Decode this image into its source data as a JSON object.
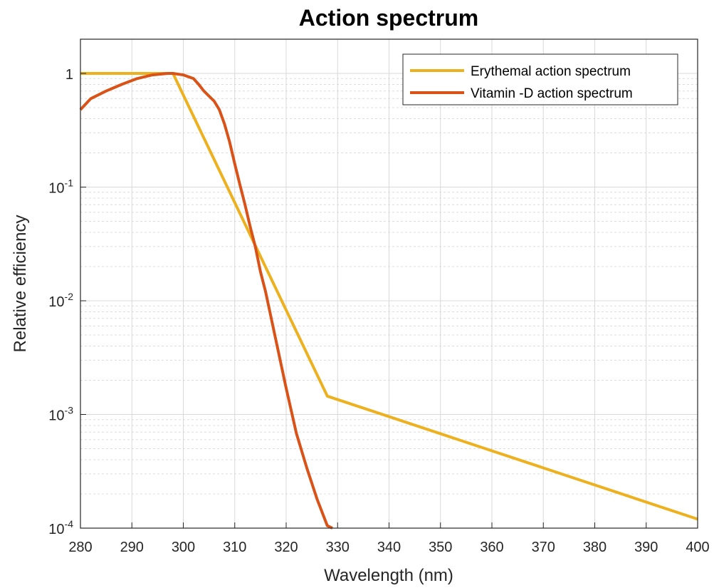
{
  "chart_data": {
    "type": "line",
    "title": "Action spectrum",
    "xlabel": "Wavelength (nm)",
    "ylabel": "Relative efficiency",
    "xlim": [
      280,
      400
    ],
    "ylim": [
      0.0001,
      2
    ],
    "yscale": "log",
    "grid": true,
    "minor_grid": true,
    "legend_position": "top-right",
    "x_ticks": [
      280,
      290,
      300,
      310,
      320,
      330,
      340,
      350,
      360,
      370,
      380,
      390,
      400
    ],
    "y_ticks": [
      {
        "value": 0.0001,
        "base": "10",
        "exp": "-4"
      },
      {
        "value": 0.001,
        "base": "10",
        "exp": "-3"
      },
      {
        "value": 0.01,
        "base": "10",
        "exp": "-2"
      },
      {
        "value": 0.1,
        "base": "10",
        "exp": "-1"
      },
      {
        "value": 1,
        "base": "1",
        "exp": ""
      }
    ],
    "series": [
      {
        "name": "Erythemal action spectrum",
        "color": "#EDB120",
        "x": [
          280,
          298,
          328,
          400
        ],
        "y": [
          1.0,
          1.0,
          0.00145,
          0.00012
        ]
      },
      {
        "name": "Vitamin -D action spectrum",
        "color": "#D95319",
        "x": [
          280,
          282,
          285,
          288,
          291,
          294,
          297,
          298,
          300,
          302,
          303,
          304,
          306,
          307,
          308,
          309,
          310,
          311,
          312,
          313,
          314,
          315,
          316,
          318,
          320,
          322,
          324,
          326,
          328,
          329
        ],
        "y": [
          0.48,
          0.6,
          0.7,
          0.8,
          0.9,
          0.97,
          1.0,
          1.0,
          0.97,
          0.9,
          0.8,
          0.7,
          0.57,
          0.48,
          0.36,
          0.25,
          0.16,
          0.105,
          0.07,
          0.045,
          0.03,
          0.018,
          0.012,
          0.0045,
          0.0017,
          0.00068,
          0.00034,
          0.00018,
          0.000105,
          0.0001
        ]
      }
    ]
  }
}
